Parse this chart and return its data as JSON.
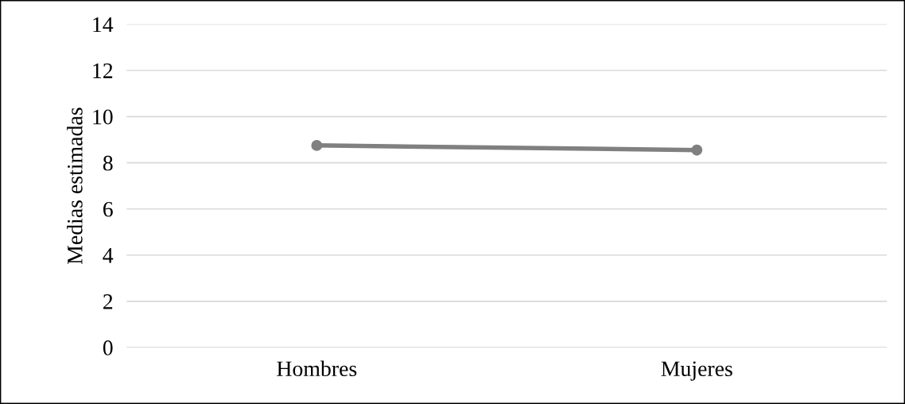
{
  "chart_data": {
    "type": "line",
    "ylabel": "Medias estimadas",
    "categories": [
      "Hombres",
      "Mujeres"
    ],
    "series": [
      {
        "color": "#808080",
        "values": [
          8.75,
          8.55
        ]
      }
    ],
    "ylim": [
      0,
      14
    ],
    "yticks": [
      0,
      2,
      4,
      6,
      8,
      10,
      12,
      14
    ],
    "grid": "y",
    "marker": "circle",
    "line_style": "solid"
  }
}
